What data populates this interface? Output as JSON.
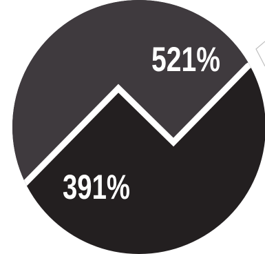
{
  "graphic": {
    "segments": [
      {
        "name": "upper",
        "value_text": "521%",
        "color": "#3f3a3e"
      },
      {
        "name": "lower",
        "value_text": "391%",
        "color": "#231f20"
      }
    ],
    "divider_color": "#ffffff"
  }
}
